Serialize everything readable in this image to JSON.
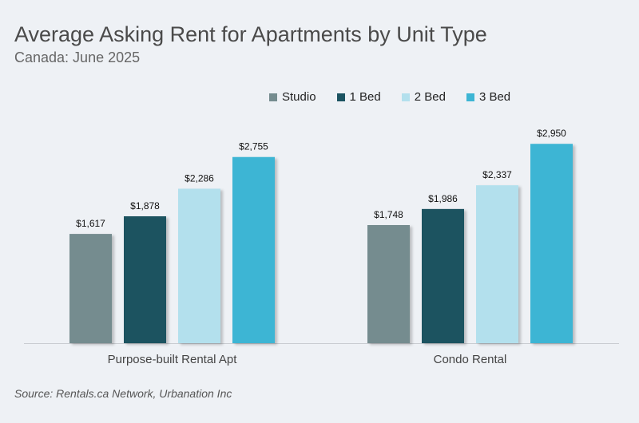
{
  "chart_data": {
    "type": "bar",
    "title": "Average Asking Rent for Apartments by Unit Type",
    "subtitle": "Canada: June 2025",
    "categories": [
      "Purpose-built Rental Apt",
      "Condo Rental"
    ],
    "series": [
      {
        "name": "Studio",
        "color": "#758c8f",
        "values": [
          1617,
          1748
        ],
        "labels": [
          "$1,617",
          "$1,748"
        ]
      },
      {
        "name": "1 Bed",
        "color": "#1b5361",
        "values": [
          1878,
          1986
        ],
        "labels": [
          "$1,878",
          "$1,986"
        ]
      },
      {
        "name": "2 Bed",
        "color": "#b3e0ed",
        "values": [
          2286,
          2337
        ],
        "labels": [
          "$2,286",
          "$2,337"
        ]
      },
      {
        "name": "3 Bed",
        "color": "#3db5d4",
        "values": [
          2755,
          2950
        ],
        "labels": [
          "$2,755",
          "$2,950"
        ]
      }
    ],
    "ylim": [
      0,
      3000
    ],
    "grid": false,
    "legend_position": "top-right",
    "source": "Source: Rentals.ca Network, Urbanation Inc"
  }
}
